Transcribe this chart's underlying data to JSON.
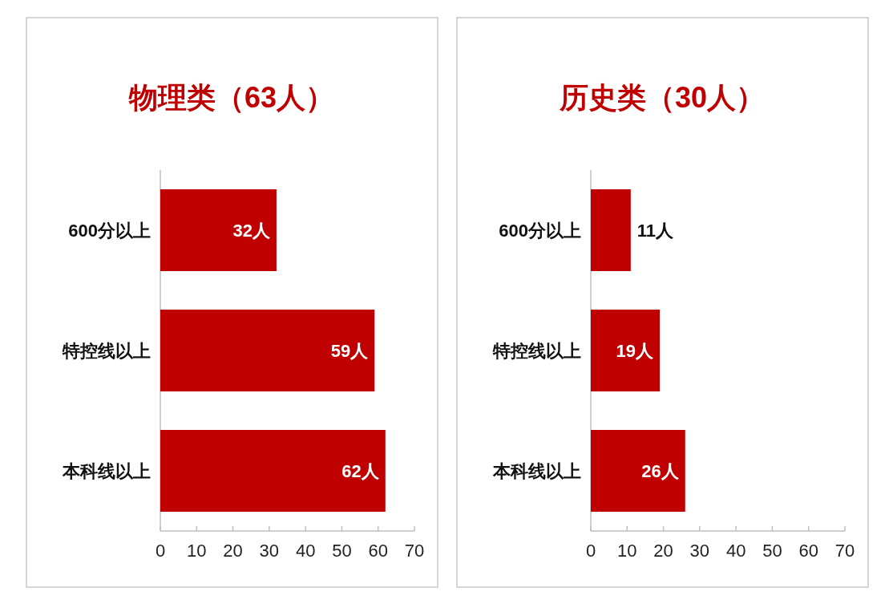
{
  "chart_data": [
    {
      "type": "bar",
      "orientation": "horizontal",
      "title": "物理类（63人）",
      "categories": [
        "600分以上",
        "特控线以上",
        "本科线以上"
      ],
      "values": [
        32,
        59,
        62
      ],
      "value_labels": [
        "32人",
        "59人",
        "62人"
      ],
      "color": "#c00000",
      "xlim": [
        0,
        70
      ],
      "xticks": [
        0,
        10,
        20,
        30,
        40,
        50,
        60,
        70
      ]
    },
    {
      "type": "bar",
      "orientation": "horizontal",
      "title": "历史类（30人）",
      "categories": [
        "600分以上",
        "特控线以上",
        "本科线以上"
      ],
      "values": [
        11,
        19,
        26
      ],
      "value_labels": [
        "11人",
        "19人",
        "26人"
      ],
      "color": "#c00000",
      "xlim": [
        0,
        70
      ],
      "xticks": [
        0,
        10,
        20,
        30,
        40,
        50,
        60,
        70
      ]
    }
  ]
}
